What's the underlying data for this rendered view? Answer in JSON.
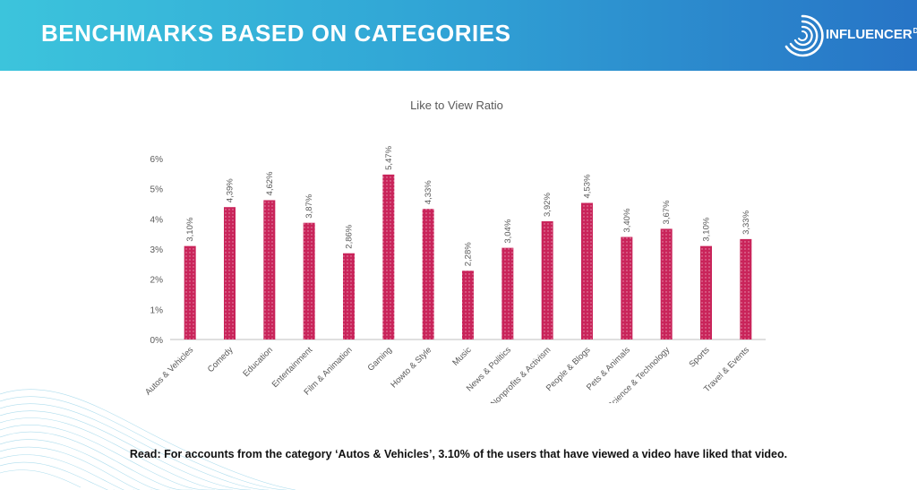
{
  "header": {
    "title": "BENCHMARKS BASED ON CATEGORIES",
    "brand_name": "INFLUENCER",
    "brand_suffix": "DB",
    "brand_icon": "concentric-circles-icon"
  },
  "colors": {
    "banner_start": "#3cc4dc",
    "banner_end": "#2774c6",
    "bar": "#c9245a",
    "bar_pattern": "#ffffff"
  },
  "chart_data": {
    "type": "bar",
    "title": "Like to View Ratio",
    "categories": [
      "Autos & Vehicles",
      "Comedy",
      "Education",
      "Entertainment",
      "Film & Animation",
      "Gaming",
      "Howto & Style",
      "Music",
      "News & Politics",
      "Nonprofits & Activism",
      "People & Blogs",
      "Pets & Animals",
      "Science & Technology",
      "Sports",
      "Travel & Events"
    ],
    "values": [
      3.1,
      4.39,
      4.62,
      3.87,
      2.86,
      5.47,
      4.33,
      2.28,
      3.04,
      3.92,
      4.53,
      3.4,
      3.67,
      3.1,
      3.33
    ],
    "data_labels": [
      "3,10%",
      "4,39%",
      "4,62%",
      "3,87%",
      "2,86%",
      "5,47%",
      "4,33%",
      "2,28%",
      "3,04%",
      "3,92%",
      "4,53%",
      "3,40%",
      "3,67%",
      "3,10%",
      "3,33%"
    ],
    "yticks": [
      0,
      1,
      2,
      3,
      4,
      5,
      6
    ],
    "ytick_labels": [
      "0%",
      "1%",
      "2%",
      "3%",
      "4%",
      "5%",
      "6%"
    ],
    "ylim": [
      0,
      6
    ],
    "xlabel": "",
    "ylabel": "",
    "grid": false,
    "legend": "none"
  },
  "footnote": "Read: For accounts from the category ‘Autos & Vehicles’, 3.10% of the users that have viewed a video have liked that video."
}
